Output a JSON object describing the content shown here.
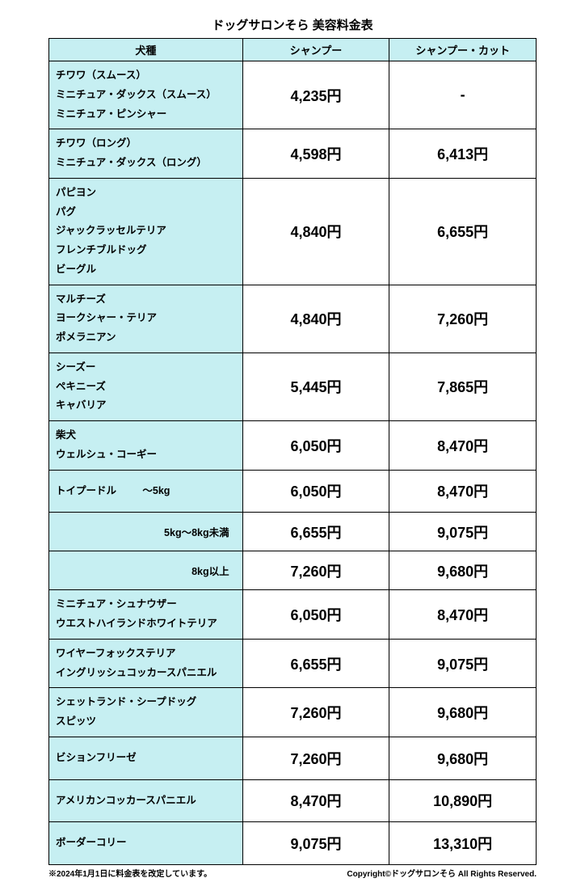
{
  "title": "ドッグサロンそら 美容料金表",
  "columns": [
    "犬種",
    "シャンプー",
    "シャンプー・カット"
  ],
  "rows": [
    {
      "breeds": [
        "チワワ（スムース）",
        "ミニチュア・ダックス（スムース）",
        "ミニチュア・ピンシャー"
      ],
      "shampoo": "4,235円",
      "cut": "-"
    },
    {
      "breeds": [
        "チワワ（ロング）",
        "ミニチュア・ダックス（ロング）"
      ],
      "shampoo": "4,598円",
      "cut": "6,413円"
    },
    {
      "breeds": [
        "パピヨン",
        "パグ",
        "ジャックラッセルテリア",
        "フレンチブルドッグ",
        "ビーグル"
      ],
      "shampoo": "4,840円",
      "cut": "6,655円"
    },
    {
      "breeds": [
        "マルチーズ",
        "ヨークシャー・テリア",
        "ポメラニアン"
      ],
      "shampoo": "4,840円",
      "cut": "7,260円"
    },
    {
      "breeds": [
        "シーズー",
        "ペキニーズ",
        "キャバリア"
      ],
      "shampoo": "5,445円",
      "cut": "7,865円"
    },
    {
      "breeds": [
        "柴犬",
        "ウェルシュ・コーギー"
      ],
      "shampoo": "6,050円",
      "cut": "8,470円"
    }
  ],
  "poodle": {
    "label": "トイプードル",
    "tiers": [
      {
        "range": "～5kg",
        "shampoo": "6,050円",
        "cut": "8,470円"
      },
      {
        "range": "5kg～8kg未満",
        "shampoo": "6,655円",
        "cut": "9,075円"
      },
      {
        "range": "8kg以上",
        "shampoo": "7,260円",
        "cut": "9,680円"
      }
    ]
  },
  "rows2": [
    {
      "breeds": [
        "ミニチュア・シュナウザー",
        "ウエストハイランドホワイトテリア"
      ],
      "shampoo": "6,050円",
      "cut": "8,470円"
    },
    {
      "breeds": [
        "ワイヤーフォックステリア",
        "イングリッシュコッカースパニエル"
      ],
      "shampoo": "6,655円",
      "cut": "9,075円"
    },
    {
      "breeds": [
        "シェットランド・シープドッグ",
        "スピッツ"
      ],
      "shampoo": "7,260円",
      "cut": "9,680円"
    },
    {
      "breeds": [
        "ビションフリーゼ"
      ],
      "shampoo": "7,260円",
      "cut": "9,680円"
    },
    {
      "breeds": [
        "アメリカンコッカースパニエル"
      ],
      "shampoo": "8,470円",
      "cut": "10,890円"
    },
    {
      "breeds": [
        "ボーダーコリー"
      ],
      "shampoo": "9,075円",
      "cut": "13,310円"
    }
  ],
  "footer_left": "※2024年1月1日に料金表を改定しています。",
  "footer_right": "Copyright©ドッグサロンそら All Rights Reserved.",
  "colors": {
    "header_bg": "#c6eff2",
    "border": "#000000",
    "page_bg": "#ffffff"
  }
}
